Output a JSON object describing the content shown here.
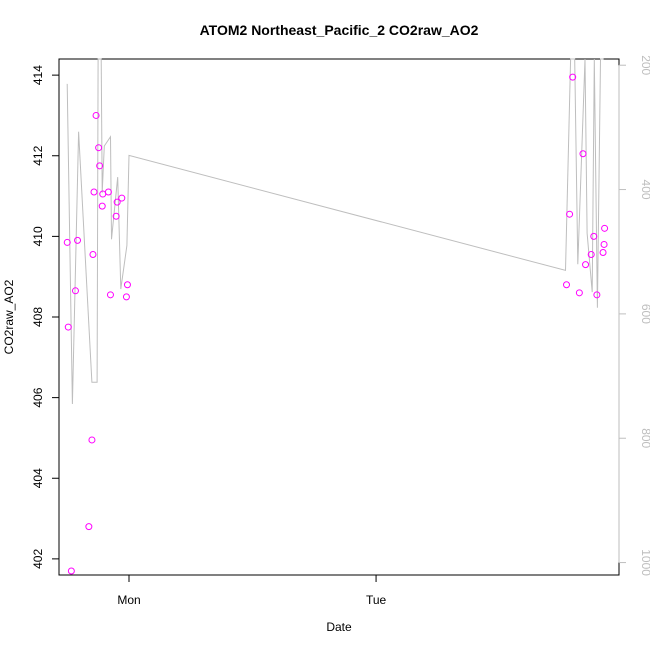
{
  "chart_data": {
    "type": "scatter",
    "title": "ATOM2 Northeast_Pacific_2 CO2raw_AO2",
    "xlabel": "Date",
    "ylabel": "CO2raw_AO2",
    "x_ticks": [
      "Mon",
      "Tue"
    ],
    "y_ticks": [
      402,
      404,
      406,
      408,
      410,
      412,
      414
    ],
    "ylim": [
      401.6,
      414.4
    ],
    "right_axis": {
      "ticks": [
        200,
        400,
        600,
        800,
        1000
      ],
      "lim": [
        1020,
        190
      ],
      "color": "#bebebe"
    },
    "x_unit": "hours relative to Monday 00:00",
    "xlim": [
      -6.8,
      47.6
    ],
    "point_color": "#ff00ff",
    "line_color": "#bebebe",
    "points": [
      {
        "x": -6.0,
        "y": 409.85
      },
      {
        "x": -5.9,
        "y": 407.75
      },
      {
        "x": -5.6,
        "y": 401.7
      },
      {
        "x": -5.2,
        "y": 408.65
      },
      {
        "x": -5.0,
        "y": 409.9
      },
      {
        "x": -3.9,
        "y": 402.8
      },
      {
        "x": -3.6,
        "y": 404.95
      },
      {
        "x": -3.5,
        "y": 409.55
      },
      {
        "x": -3.4,
        "y": 411.1
      },
      {
        "x": -3.2,
        "y": 413.0
      },
      {
        "x": -2.95,
        "y": 412.2
      },
      {
        "x": -2.85,
        "y": 411.75
      },
      {
        "x": -2.6,
        "y": 410.75
      },
      {
        "x": -2.55,
        "y": 411.05
      },
      {
        "x": -2.0,
        "y": 411.1
      },
      {
        "x": -1.8,
        "y": 408.55
      },
      {
        "x": -1.25,
        "y": 410.5
      },
      {
        "x": -1.15,
        "y": 410.85
      },
      {
        "x": -0.7,
        "y": 410.95
      },
      {
        "x": -0.25,
        "y": 408.5
      },
      {
        "x": -0.15,
        "y": 408.8
      },
      {
        "x": 42.5,
        "y": 408.8
      },
      {
        "x": 42.8,
        "y": 410.55
      },
      {
        "x": 43.1,
        "y": 413.95
      },
      {
        "x": 43.75,
        "y": 408.6
      },
      {
        "x": 44.1,
        "y": 412.05
      },
      {
        "x": 44.35,
        "y": 409.3
      },
      {
        "x": 44.9,
        "y": 409.55
      },
      {
        "x": 45.15,
        "y": 410.0
      },
      {
        "x": 45.45,
        "y": 408.55
      },
      {
        "x": 46.05,
        "y": 409.6
      },
      {
        "x": 46.15,
        "y": 409.8
      },
      {
        "x": 46.2,
        "y": 410.2
      }
    ],
    "line": [
      {
        "x": -6.0,
        "y": 230
      },
      {
        "x": -5.5,
        "y": 745
      },
      {
        "x": -4.9,
        "y": 307
      },
      {
        "x": -3.6,
        "y": 710
      },
      {
        "x": -3.1,
        "y": 710
      },
      {
        "x": -3.0,
        "y": 190
      },
      {
        "x": -2.7,
        "y": 190
      },
      {
        "x": -2.6,
        "y": 405
      },
      {
        "x": -2.4,
        "y": 330
      },
      {
        "x": -1.8,
        "y": 315
      },
      {
        "x": -1.7,
        "y": 480
      },
      {
        "x": -1.1,
        "y": 380
      },
      {
        "x": -0.8,
        "y": 560
      },
      {
        "x": -0.2,
        "y": 490
      },
      {
        "x": 0.0,
        "y": 345
      },
      {
        "x": 42.4,
        "y": 530
      },
      {
        "x": 42.9,
        "y": 190
      },
      {
        "x": 43.3,
        "y": 190
      },
      {
        "x": 43.6,
        "y": 520
      },
      {
        "x": 44.3,
        "y": 190
      },
      {
        "x": 44.5,
        "y": 470
      },
      {
        "x": 45.0,
        "y": 565
      },
      {
        "x": 45.2,
        "y": 190
      },
      {
        "x": 45.5,
        "y": 590
      },
      {
        "x": 45.8,
        "y": 190
      },
      {
        "x": 46.1,
        "y": 190
      }
    ]
  }
}
